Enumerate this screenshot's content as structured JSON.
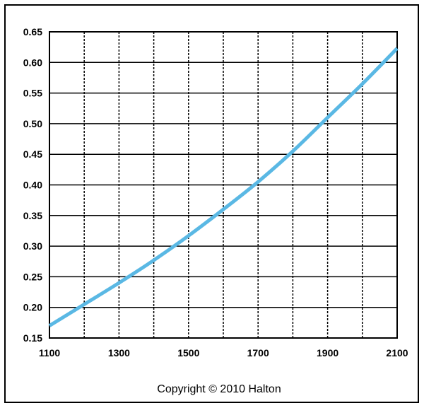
{
  "chart_data": {
    "type": "line",
    "title": "",
    "xlabel": "",
    "ylabel": "",
    "xlim": [
      1100,
      2100
    ],
    "ylim": [
      0.15,
      0.65
    ],
    "grid": true,
    "x_ticks": [
      1100,
      1300,
      1500,
      1700,
      1900,
      2100
    ],
    "x_tick_labels": [
      "1100",
      "1300",
      "1500",
      "1700",
      "1900",
      "2100"
    ],
    "y_ticks": [
      0.15,
      0.2,
      0.25,
      0.3,
      0.35,
      0.4,
      0.45,
      0.5,
      0.55,
      0.6,
      0.65
    ],
    "y_tick_labels": [
      "0.15",
      "0.20",
      "0.25",
      "0.30",
      "0.35",
      "0.40",
      "0.45",
      "0.50",
      "0.55",
      "0.60",
      "0.65"
    ],
    "series": [
      {
        "color": "#5ab8e4",
        "x": [
          1100,
          1200,
          1300,
          1400,
          1500,
          1600,
          1700,
          1800,
          1900,
          2000,
          2100
        ],
        "y": [
          0.17,
          0.205,
          0.24,
          0.277,
          0.317,
          0.36,
          0.405,
          0.455,
          0.51,
          0.565,
          0.623
        ]
      }
    ]
  },
  "footer": {
    "copyright": "Copyright © 2010 Halton"
  }
}
